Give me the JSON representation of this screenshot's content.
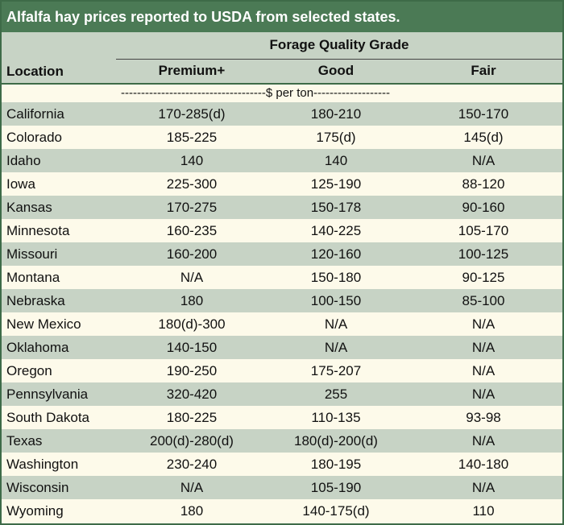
{
  "title": "Alfalfa hay prices reported to USDA from selected states.",
  "header": {
    "group_label": "Forage Quality Grade",
    "location_label": "Location",
    "columns": [
      "Premium+",
      "Good",
      "Fair"
    ],
    "units": "------------------------------------$ per ton-------------------"
  },
  "colors": {
    "title_bg": "#4b7a55",
    "shaded_row": "#c7d3c5",
    "plain_row": "#fdfaea",
    "border": "#3e6b48"
  },
  "rows": [
    {
      "location": "California",
      "premium": "170-285(d)",
      "good": "180-210",
      "fair": "150-170"
    },
    {
      "location": "Colorado",
      "premium": "185-225",
      "good": "175(d)",
      "fair": "145(d)"
    },
    {
      "location": "Idaho",
      "premium": "140",
      "good": "140",
      "fair": "N/A"
    },
    {
      "location": "Iowa",
      "premium": "225-300",
      "good": "125-190",
      "fair": "88-120"
    },
    {
      "location": "Kansas",
      "premium": "170-275",
      "good": "150-178",
      "fair": "90-160"
    },
    {
      "location": "Minnesota",
      "premium": "160-235",
      "good": "140-225",
      "fair": "105-170"
    },
    {
      "location": "Missouri",
      "premium": "160-200",
      "good": "120-160",
      "fair": "100-125"
    },
    {
      "location": "Montana",
      "premium": "N/A",
      "good": "150-180",
      "fair": "90-125"
    },
    {
      "location": "Nebraska",
      "premium": "180",
      "good": "100-150",
      "fair": "85-100"
    },
    {
      "location": "New Mexico",
      "premium": "180(d)-300",
      "good": "N/A",
      "fair": "N/A"
    },
    {
      "location": "Oklahoma",
      "premium": "140-150",
      "good": "N/A",
      "fair": "N/A"
    },
    {
      "location": "Oregon",
      "premium": "190-250",
      "good": "175-207",
      "fair": "N/A"
    },
    {
      "location": "Pennsylvania",
      "premium": "320-420",
      "good": "255",
      "fair": "N/A"
    },
    {
      "location": "South Dakota",
      "premium": "180-225",
      "good": "110-135",
      "fair": "93-98"
    },
    {
      "location": "Texas",
      "premium": "200(d)-280(d)",
      "good": "180(d)-200(d)",
      "fair": "N/A"
    },
    {
      "location": "Washington",
      "premium": "230-240",
      "good": "180-195",
      "fair": "140-180"
    },
    {
      "location": "Wisconsin",
      "premium": "N/A",
      "good": "105-190",
      "fair": "N/A"
    },
    {
      "location": "Wyoming",
      "premium": "180",
      "good": "140-175(d)",
      "fair": "110"
    }
  ]
}
